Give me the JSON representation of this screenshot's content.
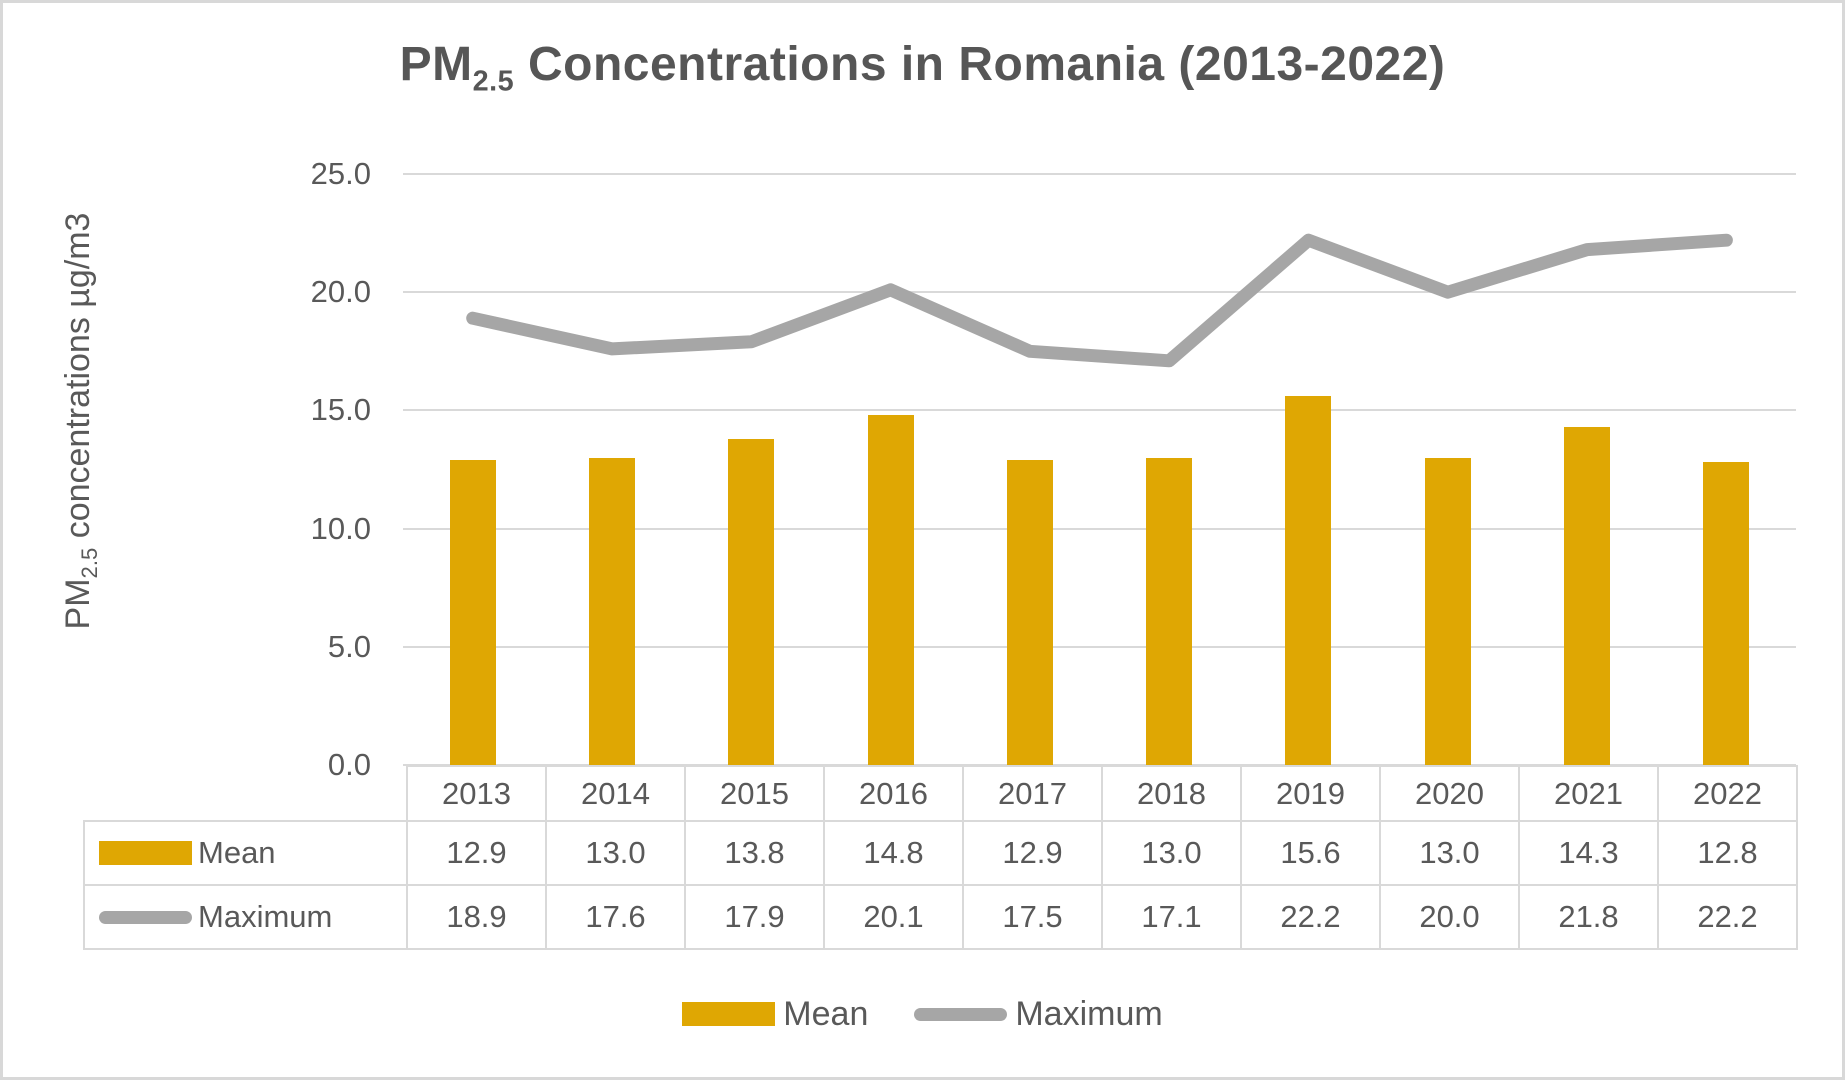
{
  "title": {
    "prefix": "PM",
    "sub": "2.5",
    "rest": " Concentrations in Romania (2013-2022)"
  },
  "y_axis": {
    "prefix": "PM",
    "sub": "2.5",
    "rest": " concentrations µg/m3",
    "ticks": [
      "25.0",
      "20.0",
      "15.0",
      "10.0",
      "5.0",
      "0.0"
    ]
  },
  "legend": {
    "mean_label": "Mean",
    "maximum_label": "Maximum"
  },
  "colors": {
    "mean": "#dfa703",
    "maximum": "#a6a6a6",
    "grid": "#d9d9d9",
    "table_border": "#d9d9d9",
    "text": "#595959",
    "title_text": "#565656"
  },
  "chart_data": {
    "type": "bar",
    "title": "PM2.5 Concentrations in Romania (2013-2022)",
    "xlabel": "",
    "ylabel": "PM2.5 concentrations µg/m3",
    "ylim": [
      0,
      25
    ],
    "grid": true,
    "legend_position": "bottom",
    "categories": [
      "2013",
      "2014",
      "2015",
      "2016",
      "2017",
      "2018",
      "2019",
      "2020",
      "2021",
      "2022"
    ],
    "series": [
      {
        "name": "Mean",
        "type": "bar",
        "color": "#dfa703",
        "values": [
          12.9,
          13.0,
          13.8,
          14.8,
          12.9,
          13.0,
          15.6,
          13.0,
          14.3,
          12.8
        ]
      },
      {
        "name": "Maximum",
        "type": "line",
        "color": "#a6a6a6",
        "values": [
          18.9,
          17.6,
          17.9,
          20.1,
          17.5,
          17.1,
          22.2,
          20.0,
          21.8,
          22.2
        ]
      }
    ]
  },
  "table": {
    "rows": [
      {
        "label": "Mean",
        "values": [
          "12.9",
          "13.0",
          "13.8",
          "14.8",
          "12.9",
          "13.0",
          "15.6",
          "13.0",
          "14.3",
          "12.8"
        ]
      },
      {
        "label": "Maximum",
        "values": [
          "18.9",
          "17.6",
          "17.9",
          "20.1",
          "17.5",
          "17.1",
          "22.2",
          "20.0",
          "21.8",
          "22.2"
        ]
      }
    ]
  }
}
